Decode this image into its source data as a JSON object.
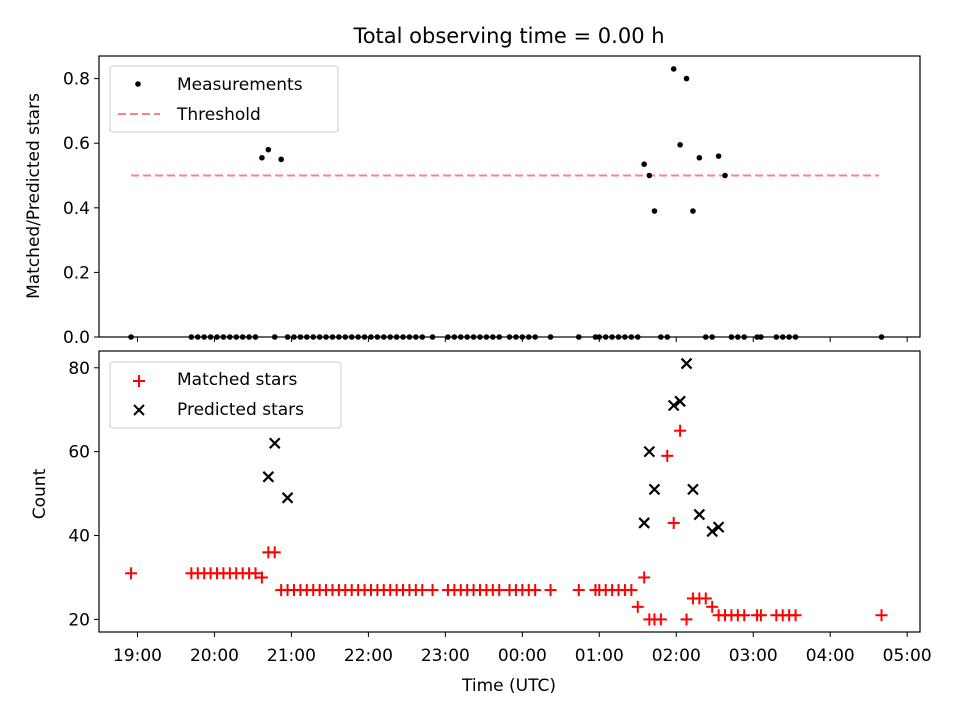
{
  "chart_data": [
    {
      "type": "scatter",
      "title": "Total observing time = 0.00 h",
      "xlabel": "",
      "ylabel": "Matched/Predicted stars",
      "ylim": [
        0,
        0.87
      ],
      "yticks": [
        "0.0",
        "0.2",
        "0.4",
        "0.6",
        "0.8"
      ],
      "legend": {
        "position": "top-left",
        "entries": [
          "Measurements",
          "Threshold"
        ]
      },
      "colors": {
        "measurements": "#000000",
        "threshold": "#ff7f7f"
      },
      "threshold": {
        "y": 0.5,
        "x_start": "18:55",
        "x_end": "04:38"
      },
      "series": [
        {
          "name": "Measurements",
          "x": [
            "18:55",
            "19:42",
            "19:47",
            "19:52",
            "19:57",
            "20:02",
            "20:07",
            "20:12",
            "20:17",
            "20:22",
            "20:27",
            "20:32",
            "20:37",
            "20:42",
            "20:47",
            "20:52",
            "20:57",
            "21:02",
            "21:07",
            "21:12",
            "21:17",
            "21:22",
            "21:27",
            "21:32",
            "21:37",
            "21:42",
            "21:47",
            "21:52",
            "21:57",
            "22:02",
            "22:07",
            "22:12",
            "22:17",
            "22:22",
            "22:27",
            "22:32",
            "22:37",
            "22:42",
            "22:50",
            "23:02",
            "23:07",
            "23:12",
            "23:17",
            "23:22",
            "23:27",
            "23:32",
            "23:37",
            "23:42",
            "23:50",
            "23:55",
            "00:00",
            "00:05",
            "00:10",
            "00:22",
            "00:44",
            "00:57",
            "01:00",
            "01:05",
            "01:10",
            "01:15",
            "01:20",
            "01:25",
            "01:30",
            "01:35",
            "01:39",
            "01:43",
            "01:48",
            "01:53",
            "01:58",
            "02:03",
            "02:08",
            "02:13",
            "02:18",
            "02:23",
            "02:28",
            "02:33",
            "02:38",
            "02:43",
            "02:48",
            "02:53",
            "03:03",
            "03:06",
            "03:18",
            "03:23",
            "03:28",
            "03:33",
            "04:40"
          ],
          "y": [
            0,
            0,
            0,
            0,
            0,
            0,
            0,
            0,
            0,
            0,
            0,
            0,
            0.555,
            0.58,
            0,
            0.55,
            0,
            0,
            0,
            0,
            0,
            0,
            0,
            0,
            0,
            0,
            0,
            0,
            0,
            0,
            0,
            0,
            0,
            0,
            0,
            0,
            0,
            0,
            0,
            0,
            0,
            0,
            0,
            0,
            0,
            0,
            0,
            0,
            0,
            0,
            0,
            0,
            0,
            0,
            0,
            0,
            0,
            0,
            0,
            0,
            0,
            0,
            0,
            0.535,
            0.5,
            0.39,
            0,
            0,
            0.83,
            0.595,
            0.8,
            0.39,
            0.555,
            0,
            0,
            0.56,
            0.5,
            0,
            0,
            0,
            0,
            0,
            0,
            0,
            0,
            0,
            0
          ]
        }
      ]
    },
    {
      "type": "scatter",
      "title": "",
      "xlabel": "Time (UTC)",
      "ylabel": "Count",
      "ylim": [
        17,
        84
      ],
      "yticks": [
        "20",
        "40",
        "60",
        "80"
      ],
      "xticks": [
        "19:00",
        "20:00",
        "21:00",
        "22:00",
        "23:00",
        "00:00",
        "01:00",
        "02:00",
        "03:00",
        "04:00",
        "05:00"
      ],
      "legend": {
        "position": "top-left",
        "entries": [
          "Matched stars",
          "Predicted stars"
        ]
      },
      "colors": {
        "matched": "#ff0000",
        "predicted": "#000000"
      },
      "series": [
        {
          "name": "Matched stars",
          "x": [
            "18:55",
            "19:42",
            "19:47",
            "19:52",
            "19:57",
            "20:02",
            "20:07",
            "20:12",
            "20:17",
            "20:22",
            "20:27",
            "20:32",
            "20:37",
            "20:42",
            "20:47",
            "20:52",
            "20:57",
            "21:02",
            "21:07",
            "21:12",
            "21:17",
            "21:22",
            "21:27",
            "21:32",
            "21:37",
            "21:42",
            "21:47",
            "21:52",
            "21:57",
            "22:02",
            "22:07",
            "22:12",
            "22:17",
            "22:22",
            "22:27",
            "22:32",
            "22:37",
            "22:42",
            "22:50",
            "23:02",
            "23:07",
            "23:12",
            "23:17",
            "23:22",
            "23:27",
            "23:32",
            "23:37",
            "23:42",
            "23:50",
            "23:55",
            "00:00",
            "00:05",
            "00:10",
            "00:22",
            "00:44",
            "00:57",
            "01:00",
            "01:05",
            "01:10",
            "01:15",
            "01:20",
            "01:25",
            "01:30",
            "01:35",
            "01:39",
            "01:43",
            "01:48",
            "01:53",
            "01:58",
            "02:03",
            "02:08",
            "02:13",
            "02:18",
            "02:23",
            "02:28",
            "02:33",
            "02:38",
            "02:43",
            "02:48",
            "02:53",
            "03:03",
            "03:06",
            "03:18",
            "03:23",
            "03:28",
            "03:33",
            "04:40"
          ],
          "y": [
            31,
            31,
            31,
            31,
            31,
            31,
            31,
            31,
            31,
            31,
            31,
            31,
            30,
            36,
            36,
            27,
            27,
            27,
            27,
            27,
            27,
            27,
            27,
            27,
            27,
            27,
            27,
            27,
            27,
            27,
            27,
            27,
            27,
            27,
            27,
            27,
            27,
            27,
            27,
            27,
            27,
            27,
            27,
            27,
            27,
            27,
            27,
            27,
            27,
            27,
            27,
            27,
            27,
            27,
            27,
            27,
            27,
            27,
            27,
            27,
            27,
            27,
            23,
            30,
            20,
            20,
            20,
            59,
            43,
            65,
            20,
            25,
            25,
            25,
            23,
            21,
            21,
            21,
            21,
            21,
            21,
            21,
            21,
            21,
            21,
            21,
            21
          ]
        },
        {
          "name": "Predicted stars",
          "x": [
            "20:42",
            "20:47",
            "20:57",
            "01:35",
            "01:39",
            "01:43",
            "01:58",
            "02:03",
            "02:08",
            "02:13",
            "02:18",
            "02:28",
            "02:33"
          ],
          "y": [
            54,
            62,
            49,
            43,
            60,
            51,
            71,
            72,
            81,
            51,
            45,
            41,
            42
          ]
        }
      ]
    }
  ]
}
